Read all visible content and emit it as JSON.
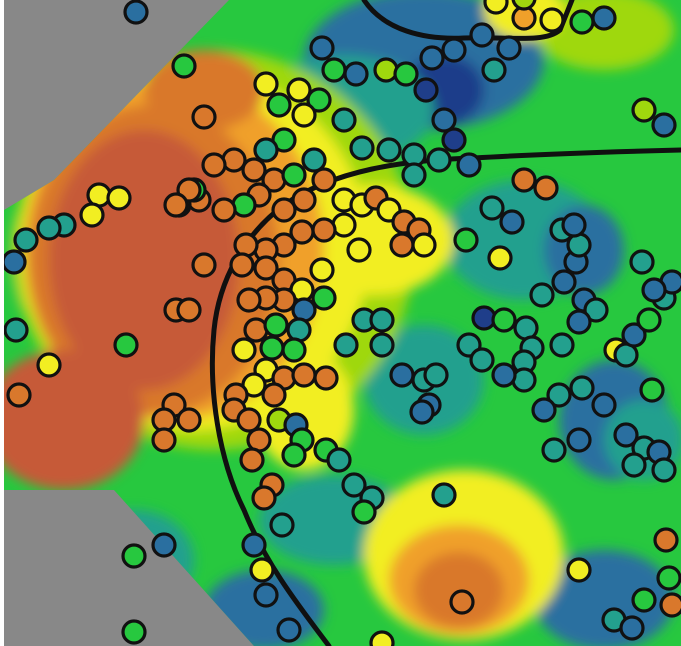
{
  "map": {
    "kind": "interpolated surface with sample points",
    "palette": {
      "dark_blue": "#1f3e8a",
      "blue": "#2a6fa0",
      "teal": "#23a08e",
      "green": "#27c83f",
      "lime": "#9fd80e",
      "yellow": "#f2ee22",
      "orange": "#f0a02a",
      "dark_orange": "#d9782c",
      "red_orange": "#c65a38",
      "outside_mask": "#888888",
      "boundary_line": "#101010"
    },
    "point_outline": "#111111"
  }
}
